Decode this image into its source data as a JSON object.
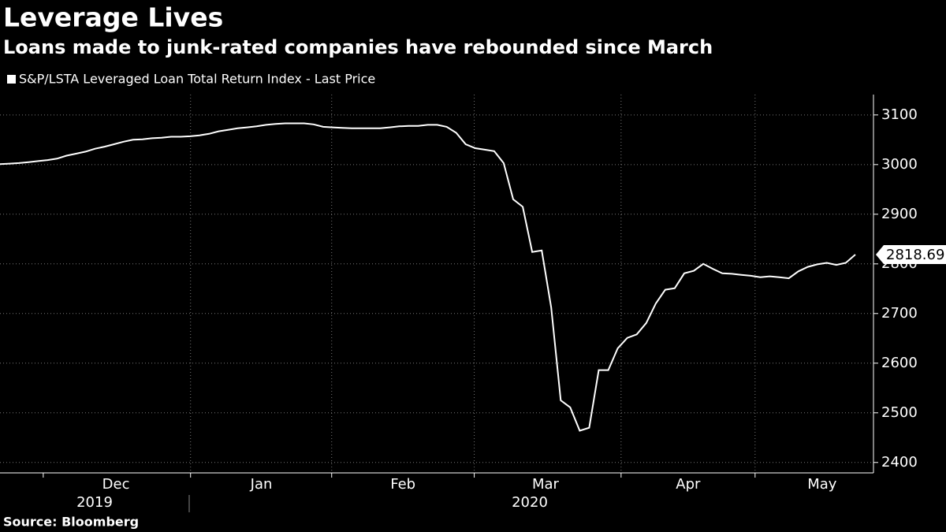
{
  "chart_data": {
    "type": "line",
    "title": "Leverage Lives",
    "subtitle": "Loans made to junk-rated companies have rebounded since March",
    "source": "Source: Bloomberg",
    "series": [
      {
        "name": "S&P/LSTA Leveraged Loan Total Return Index - Last Price",
        "color": "#ffffff",
        "values": [
          3001,
          3002,
          3003,
          3005,
          3007,
          3009,
          3012,
          3018,
          3022,
          3026,
          3032,
          3036,
          3041,
          3046,
          3050,
          3051,
          3053,
          3054,
          3056,
          3056,
          3057,
          3059,
          3062,
          3067,
          3070,
          3073,
          3075,
          3077,
          3080,
          3082,
          3083,
          3083,
          3083,
          3081,
          3076,
          3075,
          3074,
          3073,
          3073,
          3073,
          3073,
          3075,
          3077,
          3078,
          3078,
          3080,
          3080,
          3076,
          3064,
          3041,
          3033,
          3030,
          3027,
          3003,
          2930,
          2915,
          2824,
          2827,
          2712,
          2525,
          2511,
          2464,
          2470,
          2586,
          2586,
          2630,
          2651,
          2658,
          2681,
          2720,
          2748,
          2751,
          2781,
          2786,
          2800,
          2790,
          2781,
          2780,
          2778,
          2776,
          2773,
          2775,
          2773,
          2771,
          2785,
          2794,
          2799,
          2802,
          2798,
          2802,
          2818.69
        ]
      }
    ],
    "xticks": [
      {
        "value": 12.2,
        "label": "Dec"
      },
      {
        "value": 27.5,
        "label": "Jan"
      },
      {
        "value": 42.4,
        "label": "Feb"
      },
      {
        "value": 57.4,
        "label": "Mar"
      },
      {
        "value": 72.4,
        "label": "Apr"
      },
      {
        "value": 86.5,
        "label": "May"
      }
    ],
    "years": [
      "2019",
      "2020"
    ],
    "ylim": [
      2379,
      3141
    ],
    "yticks": [
      2400,
      2500,
      2600,
      2700,
      2800,
      2900,
      3000,
      3100
    ],
    "grid": true
  }
}
